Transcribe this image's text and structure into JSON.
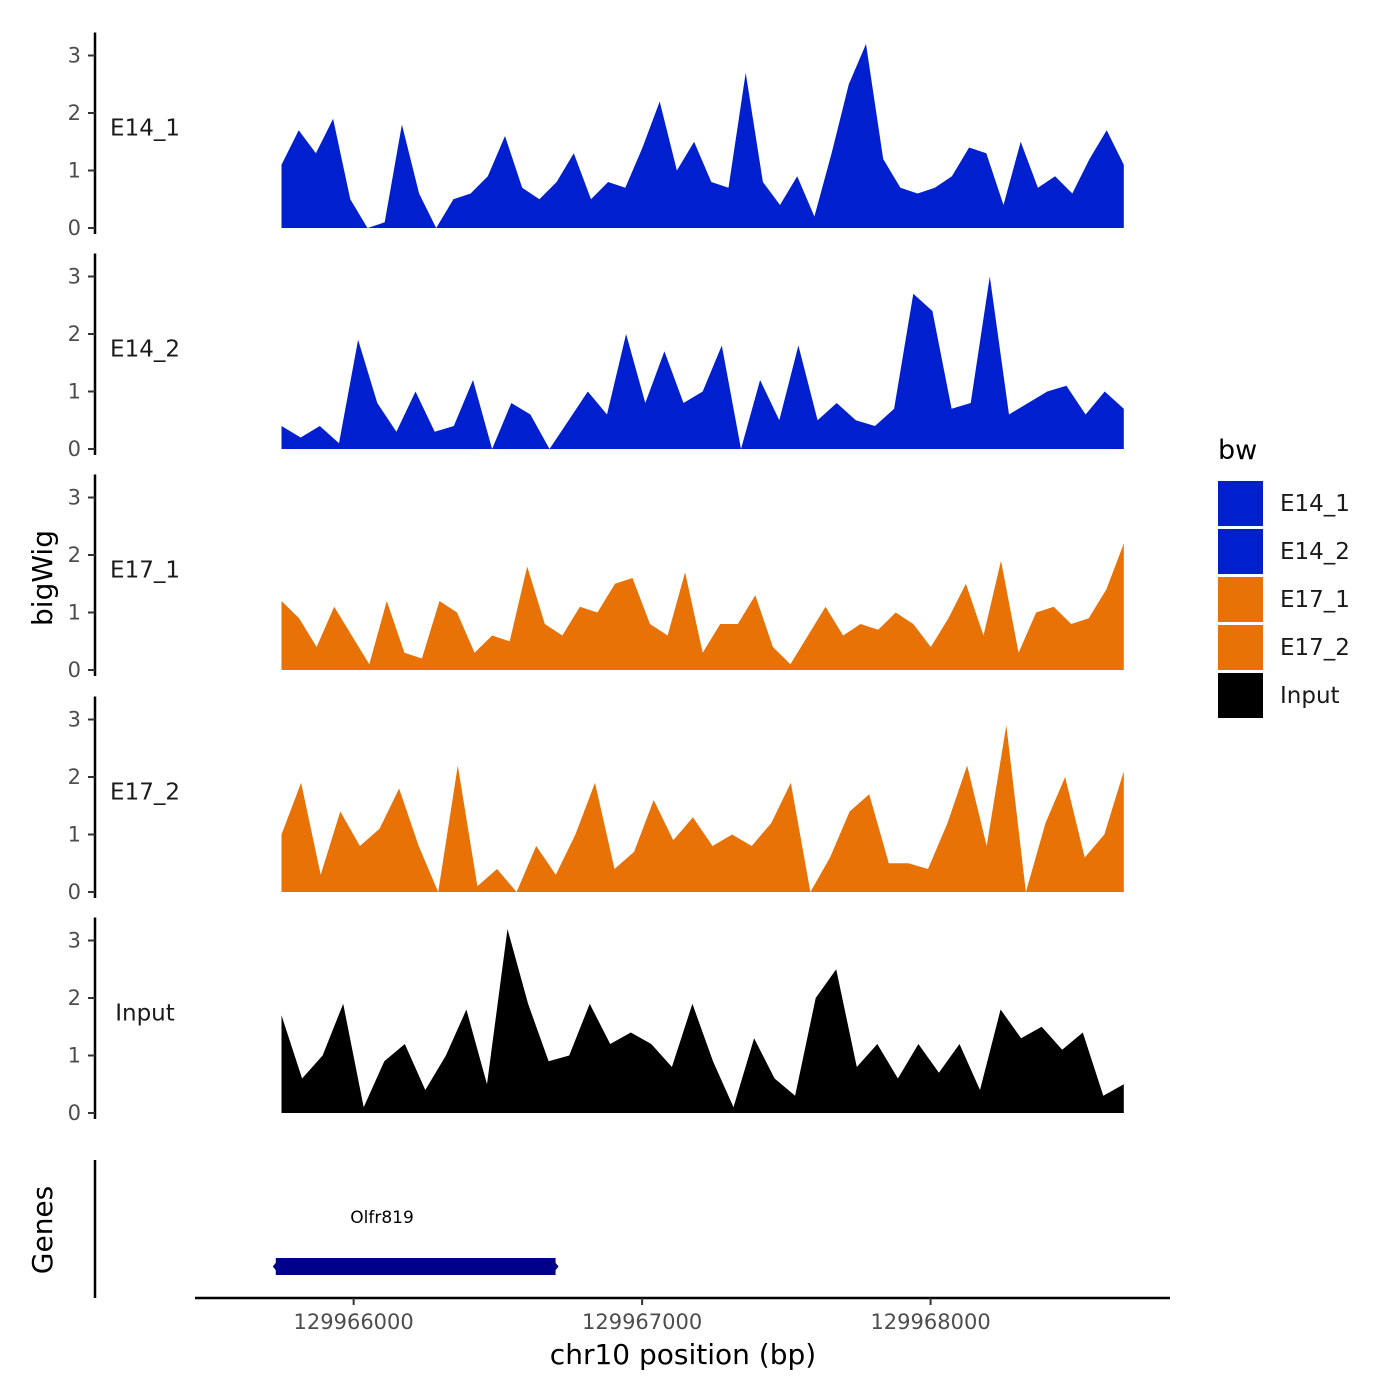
{
  "chart_data": {
    "type": "area",
    "title": "",
    "xlabel": "chr10 position (bp)",
    "ylabel": "bigWig",
    "genes_label": "Genes",
    "xlim": [
      129965450,
      129968830
    ],
    "ylim": [
      0,
      3.4
    ],
    "x_ticks": [
      129966000,
      129967000,
      129968000
    ],
    "x_tick_labels": [
      "129966000",
      "129967000",
      "129968000"
    ],
    "y_ticks": [
      0,
      1,
      2,
      3
    ],
    "y_tick_labels": [
      "0",
      "1",
      "2",
      "3"
    ],
    "x_start": 129965750,
    "x_step": 100,
    "legend": {
      "title": "bw",
      "entries": [
        {
          "label": "E14_1",
          "color": "#0020D0"
        },
        {
          "label": "E14_2",
          "color": "#0020D0"
        },
        {
          "label": "E17_1",
          "color": "#E87206"
        },
        {
          "label": "E17_2",
          "color": "#E87206"
        },
        {
          "label": "Input",
          "color": "#000000"
        }
      ]
    },
    "series": [
      {
        "name": "E14_1",
        "color": "#0020D0",
        "values": [
          1.1,
          1.7,
          1.3,
          1.9,
          0.5,
          0.0,
          0.1,
          1.8,
          0.6,
          0.0,
          0.5,
          0.6,
          0.9,
          1.6,
          0.7,
          0.5,
          0.8,
          1.3,
          0.5,
          0.8,
          0.7,
          1.4,
          2.2,
          1.0,
          1.5,
          0.8,
          0.7,
          2.7,
          0.8,
          0.4,
          0.9,
          0.2,
          1.3,
          2.5,
          3.2,
          1.2,
          0.7,
          0.6,
          0.7,
          0.9,
          1.4,
          1.3,
          0.4,
          1.5,
          0.7,
          0.9,
          0.6,
          1.2,
          1.7,
          1.1
        ]
      },
      {
        "name": "E14_2",
        "color": "#0020D0",
        "values": [
          0.4,
          0.2,
          0.4,
          0.1,
          1.9,
          0.8,
          0.3,
          1.0,
          0.3,
          0.4,
          1.2,
          0.0,
          0.8,
          0.6,
          0.0,
          0.5,
          1.0,
          0.6,
          2.0,
          0.8,
          1.7,
          0.8,
          1.0,
          1.8,
          0.0,
          1.2,
          0.5,
          1.8,
          0.5,
          0.8,
          0.5,
          0.4,
          0.7,
          2.7,
          2.4,
          0.7,
          0.8,
          3.0,
          0.6,
          0.8,
          1.0,
          1.1,
          0.6,
          1.0,
          0.7
        ]
      },
      {
        "name": "E17_1",
        "color": "#E87206",
        "values": [
          1.2,
          0.9,
          0.4,
          1.1,
          0.6,
          0.1,
          1.2,
          0.3,
          0.2,
          1.2,
          1.0,
          0.3,
          0.6,
          0.5,
          1.8,
          0.8,
          0.6,
          1.1,
          1.0,
          1.5,
          1.6,
          0.8,
          0.6,
          1.7,
          0.3,
          0.8,
          0.8,
          1.3,
          0.4,
          0.1,
          0.6,
          1.1,
          0.6,
          0.8,
          0.7,
          1.0,
          0.8,
          0.4,
          0.9,
          1.5,
          0.6,
          1.9,
          0.3,
          1.0,
          1.1,
          0.8,
          0.9,
          1.4,
          2.2
        ]
      },
      {
        "name": "E17_2",
        "color": "#E87206",
        "values": [
          1.0,
          1.9,
          0.3,
          1.4,
          0.8,
          1.1,
          1.8,
          0.8,
          0.0,
          2.2,
          0.1,
          0.4,
          0.0,
          0.8,
          0.3,
          1.0,
          1.9,
          0.4,
          0.7,
          1.6,
          0.9,
          1.3,
          0.8,
          1.0,
          0.8,
          1.2,
          1.9,
          0.0,
          0.6,
          1.4,
          1.7,
          0.5,
          0.5,
          0.4,
          1.2,
          2.2,
          0.8,
          2.9,
          0.0,
          1.2,
          2.0,
          0.6,
          1.0,
          2.1
        ]
      },
      {
        "name": "Input",
        "color": "#000000",
        "values": [
          1.7,
          0.6,
          1.0,
          1.9,
          0.1,
          0.9,
          1.2,
          0.4,
          1.0,
          1.8,
          0.5,
          3.2,
          1.9,
          0.9,
          1.0,
          1.9,
          1.2,
          1.4,
          1.2,
          0.8,
          1.9,
          0.9,
          0.1,
          1.3,
          0.6,
          0.3,
          2.0,
          2.5,
          0.8,
          1.2,
          0.6,
          1.2,
          0.7,
          1.2,
          0.4,
          1.8,
          1.3,
          1.5,
          1.1,
          1.4,
          0.3,
          0.5
        ]
      }
    ],
    "genes": [
      {
        "name": "Olfr819",
        "start": 129965730,
        "end": 129966700,
        "color": "#00008B"
      }
    ]
  }
}
